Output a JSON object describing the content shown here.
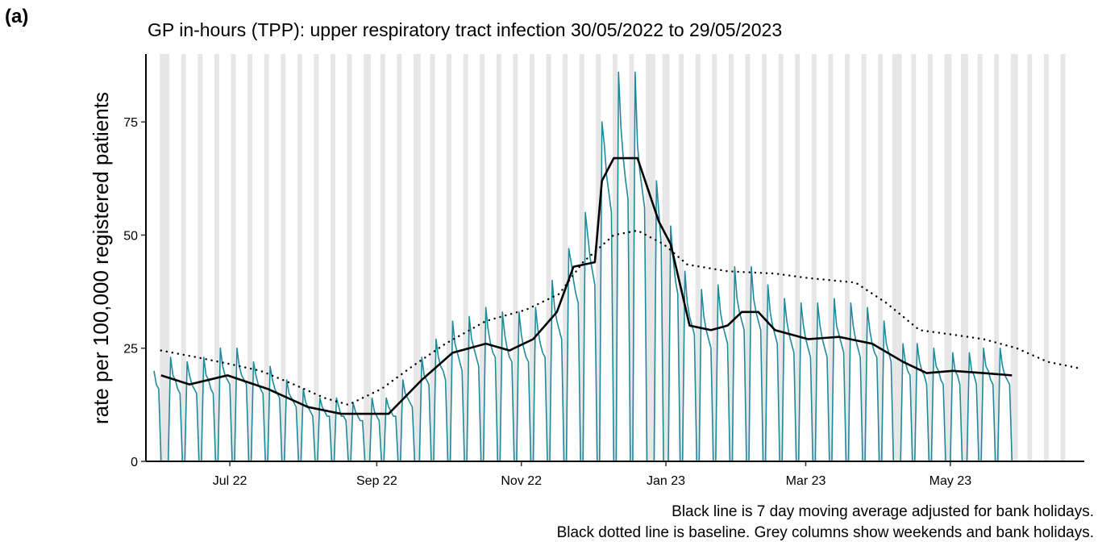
{
  "panel_label": "(a)",
  "chart_data": {
    "type": "line",
    "title": "GP in-hours (TPP): upper respiratory tract infection 30/05/2022 to 29/05/2023",
    "y_label": "rate per 100,000 registered patients",
    "notes": [
      "Black line is 7 day moving average adjusted for bank holidays.",
      "Black dotted line is baseline. Grey columns show weekends and bank holidays."
    ],
    "xlim": [
      -3.4,
      392.5
    ],
    "xticks": [
      {
        "value": 32,
        "label": "Jul 22"
      },
      {
        "value": 94,
        "label": "Sep 22"
      },
      {
        "value": 155,
        "label": "Nov 22"
      },
      {
        "value": 216,
        "label": "Jan 23"
      },
      {
        "value": 275,
        "label": "Mar 23"
      },
      {
        "value": 336,
        "label": "May 23"
      }
    ],
    "ylim": [
      0,
      90
    ],
    "yticks": [
      0,
      25,
      50,
      75
    ],
    "shade_color": "#e6e6e6",
    "shaded_days": [
      3,
      4,
      5,
      6,
      12,
      13,
      19,
      20,
      26,
      27,
      33,
      34,
      40,
      41,
      47,
      48,
      54,
      55,
      61,
      62,
      68,
      69,
      75,
      76,
      82,
      83,
      89,
      90,
      91,
      96,
      97,
      103,
      104,
      110,
      111,
      112,
      117,
      118,
      124,
      125,
      131,
      132,
      138,
      139,
      145,
      146,
      152,
      153,
      159,
      160,
      166,
      167,
      173,
      174,
      180,
      181,
      187,
      188,
      194,
      195,
      201,
      202,
      208,
      209,
      210,
      211,
      215,
      216,
      217,
      222,
      223,
      229,
      230,
      236,
      237,
      243,
      244,
      250,
      251,
      257,
      258,
      264,
      265,
      271,
      272,
      278,
      279,
      285,
      286,
      292,
      293,
      299,
      300,
      306,
      307,
      312,
      313,
      314,
      315,
      320,
      321,
      327,
      328,
      334,
      335,
      336,
      341,
      342,
      343,
      348,
      349,
      355,
      356,
      362,
      363,
      364,
      369,
      370,
      376,
      377,
      383,
      384
    ],
    "series": [
      {
        "color": "#1f8a9c",
        "style": "solid",
        "width": 1.6,
        "x": [
          0,
          1,
          2,
          3,
          4,
          5,
          6,
          7,
          8,
          9,
          10,
          11,
          12,
          13,
          14,
          15,
          16,
          17,
          18,
          19,
          20,
          21,
          22,
          23,
          24,
          25,
          26,
          27,
          28,
          29,
          30,
          31,
          32,
          33,
          34,
          35,
          36,
          37,
          38,
          39,
          40,
          41,
          42,
          43,
          44,
          45,
          46,
          47,
          48,
          49,
          50,
          51,
          52,
          53,
          54,
          55,
          56,
          57,
          58,
          59,
          60,
          61,
          62,
          63,
          64,
          65,
          66,
          67,
          68,
          69,
          70,
          71,
          72,
          73,
          74,
          75,
          76,
          77,
          78,
          79,
          80,
          81,
          82,
          83,
          84,
          85,
          86,
          87,
          88,
          89,
          90,
          91,
          92,
          93,
          94,
          95,
          96,
          97,
          98,
          99,
          100,
          101,
          102,
          103,
          104,
          105,
          106,
          107,
          108,
          109,
          110,
          111,
          112,
          113,
          114,
          115,
          116,
          117,
          118,
          119,
          120,
          121,
          122,
          123,
          124,
          125,
          126,
          127,
          128,
          129,
          130,
          131,
          132,
          133,
          134,
          135,
          136,
          137,
          138,
          139,
          140,
          141,
          142,
          143,
          144,
          145,
          146,
          147,
          148,
          149,
          150,
          151,
          152,
          153,
          154,
          155,
          156,
          157,
          158,
          159,
          160,
          161,
          162,
          163,
          164,
          165,
          166,
          167,
          168,
          169,
          170,
          171,
          172,
          173,
          174,
          175,
          176,
          177,
          178,
          179,
          180,
          181,
          182,
          183,
          184,
          185,
          186,
          187,
          188,
          189,
          190,
          191,
          192,
          193,
          194,
          195,
          196,
          197,
          198,
          199,
          200,
          201,
          202,
          203,
          204,
          205,
          206,
          207,
          208,
          209,
          210,
          211,
          212,
          213,
          214,
          215,
          216,
          217,
          218,
          219,
          220,
          221,
          222,
          223,
          224,
          225,
          226,
          227,
          228,
          229,
          230,
          231,
          232,
          233,
          234,
          235,
          236,
          237,
          238,
          239,
          240,
          241,
          242,
          243,
          244,
          245,
          246,
          247,
          248,
          249,
          250,
          251,
          252,
          253,
          254,
          255,
          256,
          257,
          258,
          259,
          260,
          261,
          262,
          263,
          264,
          265,
          266,
          267,
          268,
          269,
          270,
          271,
          272,
          273,
          274,
          275,
          276,
          277,
          278,
          279,
          280,
          281,
          282,
          283,
          284,
          285,
          286,
          287,
          288,
          289,
          290,
          291,
          292,
          293,
          294,
          295,
          296,
          297,
          298,
          299,
          300,
          301,
          302,
          303,
          304,
          305,
          306,
          307,
          308,
          309,
          310,
          311,
          312,
          313,
          314,
          315,
          316,
          317,
          318,
          319,
          320,
          321,
          322,
          323,
          324,
          325,
          326,
          327,
          328,
          329,
          330,
          331,
          332,
          333,
          334,
          335,
          336,
          337,
          338,
          339,
          340,
          341,
          342,
          343,
          344,
          345,
          346,
          347,
          348,
          349,
          350,
          351,
          352,
          353,
          354,
          355,
          356,
          357,
          358,
          359,
          360,
          361,
          362,
          363,
          364
        ],
        "values": [
          20,
          17,
          16,
          0,
          0,
          0,
          0,
          23,
          19,
          18,
          16,
          15,
          0,
          0,
          22,
          19,
          17,
          16,
          15,
          0,
          0,
          23,
          19,
          18,
          16,
          15,
          0,
          0,
          25,
          21,
          19,
          18,
          17,
          0,
          0,
          25,
          21,
          19,
          18,
          17,
          0,
          0,
          22,
          19,
          17,
          16,
          15,
          0,
          0,
          21,
          18,
          16,
          15,
          14,
          0,
          0,
          18,
          15,
          14,
          13,
          12,
          0,
          0,
          16,
          13,
          12,
          11,
          10,
          0,
          0,
          14,
          12,
          11,
          10,
          10,
          0,
          0,
          14,
          12,
          10,
          10,
          9,
          0,
          0,
          13,
          11,
          10,
          9,
          9,
          0,
          0,
          0,
          14,
          11,
          10,
          9,
          0,
          0,
          14,
          12,
          11,
          10,
          10,
          0,
          0,
          18,
          15,
          14,
          13,
          12,
          0,
          0,
          0,
          23,
          19,
          18,
          17,
          0,
          0,
          27,
          23,
          21,
          20,
          18,
          0,
          0,
          31,
          26,
          24,
          22,
          20,
          0,
          0,
          32,
          27,
          25,
          23,
          21,
          0,
          0,
          34,
          29,
          26,
          24,
          23,
          0,
          0,
          33,
          28,
          25,
          23,
          22,
          0,
          0,
          33,
          28,
          25,
          23,
          22,
          0,
          0,
          34,
          29,
          26,
          24,
          23,
          0,
          0,
          40,
          34,
          31,
          29,
          27,
          0,
          0,
          47,
          44,
          40,
          37,
          35,
          0,
          0,
          55,
          50,
          45,
          42,
          39,
          0,
          0,
          75,
          70,
          63,
          59,
          55,
          0,
          0,
          86,
          74,
          67,
          62,
          58,
          0,
          0,
          86,
          70,
          64,
          60,
          56,
          0,
          0,
          0,
          0,
          62,
          55,
          48,
          0,
          0,
          0,
          52,
          45,
          40,
          37,
          0,
          0,
          42,
          35,
          32,
          30,
          28,
          0,
          0,
          38,
          32,
          29,
          27,
          25,
          0,
          0,
          39,
          33,
          30,
          28,
          26,
          0,
          0,
          43,
          36,
          33,
          31,
          29,
          0,
          0,
          43,
          36,
          33,
          31,
          29,
          0,
          0,
          39,
          33,
          30,
          28,
          26,
          0,
          0,
          36,
          31,
          28,
          26,
          24,
          0,
          0,
          35,
          30,
          27,
          25,
          23,
          0,
          0,
          35,
          30,
          27,
          25,
          23,
          0,
          0,
          36,
          30,
          28,
          26,
          24,
          0,
          0,
          35,
          30,
          27,
          25,
          23,
          0,
          0,
          34,
          29,
          26,
          24,
          23,
          0,
          0,
          31,
          26,
          24,
          22,
          0,
          0,
          0,
          0,
          26,
          22,
          20,
          19,
          0,
          0,
          26,
          22,
          20,
          19,
          17,
          0,
          0,
          25,
          21,
          20,
          18,
          17,
          0,
          0,
          0,
          24,
          20,
          19,
          17,
          0,
          0,
          0,
          24,
          20,
          19,
          17,
          0,
          0,
          25,
          21,
          20,
          18,
          17,
          0,
          0,
          25,
          21,
          19,
          18,
          17,
          0,
          0,
          0
        ]
      },
      {
        "color": "#000000",
        "style": "dotted",
        "width": 2.4,
        "x": [
          3,
          18,
          32,
          45,
          59,
          72,
          82,
          96,
          109,
          123,
          140,
          157,
          171,
          181,
          194,
          204,
          215,
          225,
          242,
          262,
          276,
          296,
          309,
          323,
          337,
          350,
          364,
          377,
          391
        ],
        "values": [
          24.5,
          23,
          21.5,
          20,
          17,
          14,
          12.5,
          16,
          21,
          26,
          31,
          33.5,
          37,
          44,
          50,
          51,
          48,
          43.5,
          42,
          41.5,
          40.5,
          39.5,
          35,
          29,
          28,
          27,
          25,
          22,
          20.5
        ]
      },
      {
        "color": "#000000",
        "style": "solid",
        "width": 2.6,
        "x": [
          3,
          15,
          31,
          48,
          65,
          79,
          99,
          113,
          126,
          140,
          150,
          160,
          170,
          177,
          186,
          189,
          194,
          204,
          213,
          218,
          226,
          235,
          242,
          248,
          255,
          262,
          276,
          289,
          303,
          316,
          326,
          337,
          350,
          362
        ],
        "values": [
          19,
          17,
          19,
          16,
          12,
          10.5,
          10.5,
          18,
          24,
          26,
          24.5,
          27,
          33,
          43,
          44,
          62,
          67,
          67,
          53,
          48,
          30,
          29,
          30,
          33,
          33,
          29,
          27,
          27.5,
          26,
          22,
          19.5,
          20,
          19.5,
          19
        ]
      }
    ]
  }
}
